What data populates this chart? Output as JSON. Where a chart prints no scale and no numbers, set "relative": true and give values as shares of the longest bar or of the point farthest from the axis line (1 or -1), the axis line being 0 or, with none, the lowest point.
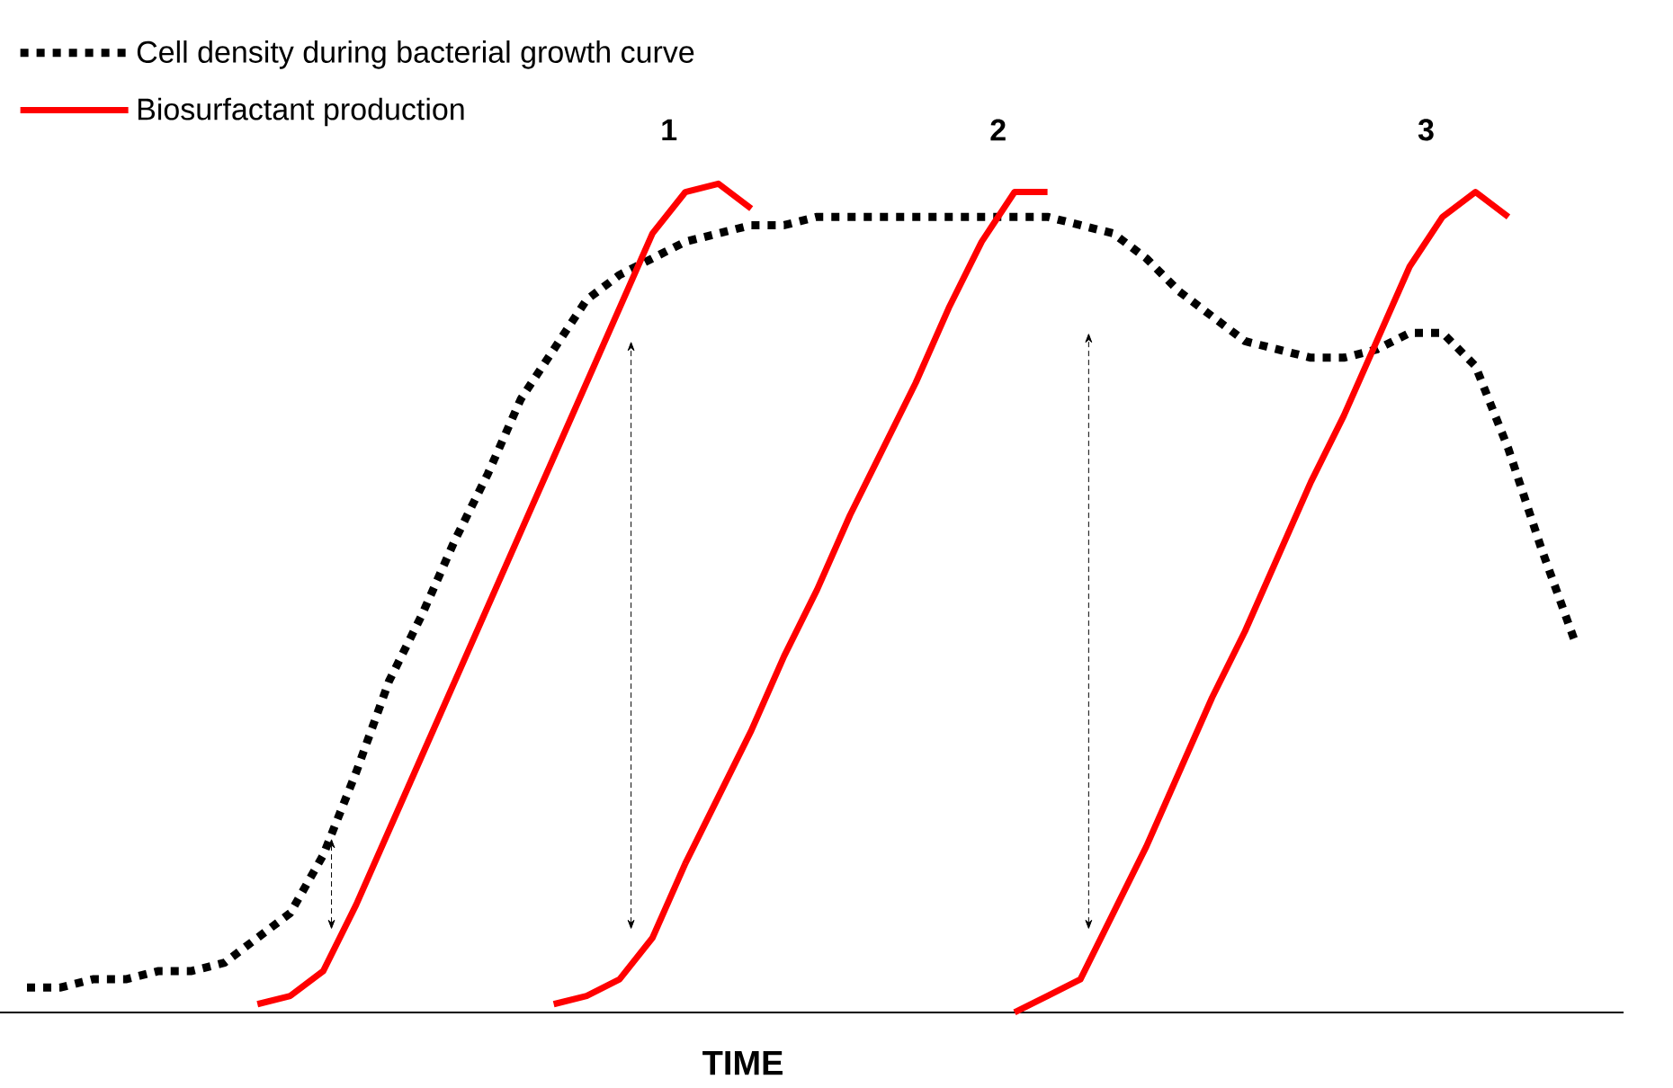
{
  "chart_data": {
    "type": "line",
    "relative": true,
    "xlabel": "TIME",
    "tick_labels": false,
    "legend": "top left",
    "marker": "none",
    "categories": [
      null,
      null,
      null,
      null,
      null,
      null,
      null,
      null,
      null,
      null,
      null,
      null,
      null,
      null,
      null,
      null,
      null,
      null,
      null,
      null,
      null,
      null,
      null,
      null,
      null,
      null,
      null,
      null,
      null,
      null,
      null,
      null,
      null,
      null,
      null,
      null,
      null,
      null,
      null,
      null,
      null,
      null,
      null,
      null,
      null,
      null,
      null,
      null
    ],
    "series": [
      {
        "name": "Cell density during bacterial growth curve",
        "color": "#000000",
        "line_style": "dotted",
        "values": [
          0.03,
          0.03,
          0.04,
          0.04,
          0.05,
          0.05,
          0.06,
          0.09,
          0.12,
          0.19,
          0.29,
          0.4,
          0.48,
          0.57,
          0.65,
          0.74,
          0.8,
          0.86,
          0.89,
          0.91,
          0.93,
          0.94,
          0.95,
          0.95,
          0.96,
          0.96,
          0.96,
          0.96,
          0.96,
          0.96,
          0.96,
          0.96,
          0.95,
          0.94,
          0.91,
          0.87,
          0.84,
          0.81,
          0.8,
          0.79,
          0.79,
          0.8,
          0.82,
          0.82,
          0.78,
          0.68,
          0.56,
          0.45
        ]
      },
      {
        "name": "Biosurfactant production",
        "color": "#ff0000",
        "line_style": "solid",
        "values": [
          null,
          null,
          null,
          null,
          null,
          null,
          null,
          0.01,
          0.02,
          0.05,
          0.13,
          0.22,
          0.31,
          0.4,
          0.49,
          0.58,
          0.67,
          0.76,
          0.85,
          0.94,
          0.99,
          1,
          0.97,
          null,
          null,
          null,
          null,
          null,
          null,
          null,
          null,
          null,
          null,
          null,
          null,
          null,
          null,
          null,
          null,
          null,
          null,
          null,
          null,
          null,
          null,
          null,
          null,
          null
        ]
      },
      {
        "color": "#ff0000",
        "line_style": "solid",
        "values": [
          null,
          null,
          null,
          null,
          null,
          null,
          null,
          null,
          null,
          null,
          null,
          null,
          null,
          null,
          null,
          null,
          0.01,
          0.02,
          0.04,
          0.09,
          0.18,
          0.26,
          0.34,
          0.43,
          0.51,
          0.6,
          0.68,
          0.76,
          0.85,
          0.93,
          0.99,
          0.99,
          null,
          null,
          null,
          null,
          null,
          null,
          null,
          null,
          null,
          null,
          null,
          null,
          null,
          null,
          null,
          null
        ]
      },
      {
        "color": "#ff0000",
        "line_style": "solid",
        "values": [
          null,
          null,
          null,
          null,
          null,
          null,
          null,
          null,
          null,
          null,
          null,
          null,
          null,
          null,
          null,
          null,
          null,
          null,
          null,
          null,
          null,
          null,
          null,
          null,
          null,
          null,
          null,
          null,
          null,
          null,
          0,
          0.02,
          0.04,
          0.12,
          0.2,
          0.29,
          0.38,
          0.46,
          0.55,
          0.64,
          0.72,
          0.81,
          0.9,
          0.96,
          0.99,
          0.96,
          null,
          null
        ]
      }
    ],
    "annotations": [
      "1",
      "2",
      "3"
    ]
  }
}
